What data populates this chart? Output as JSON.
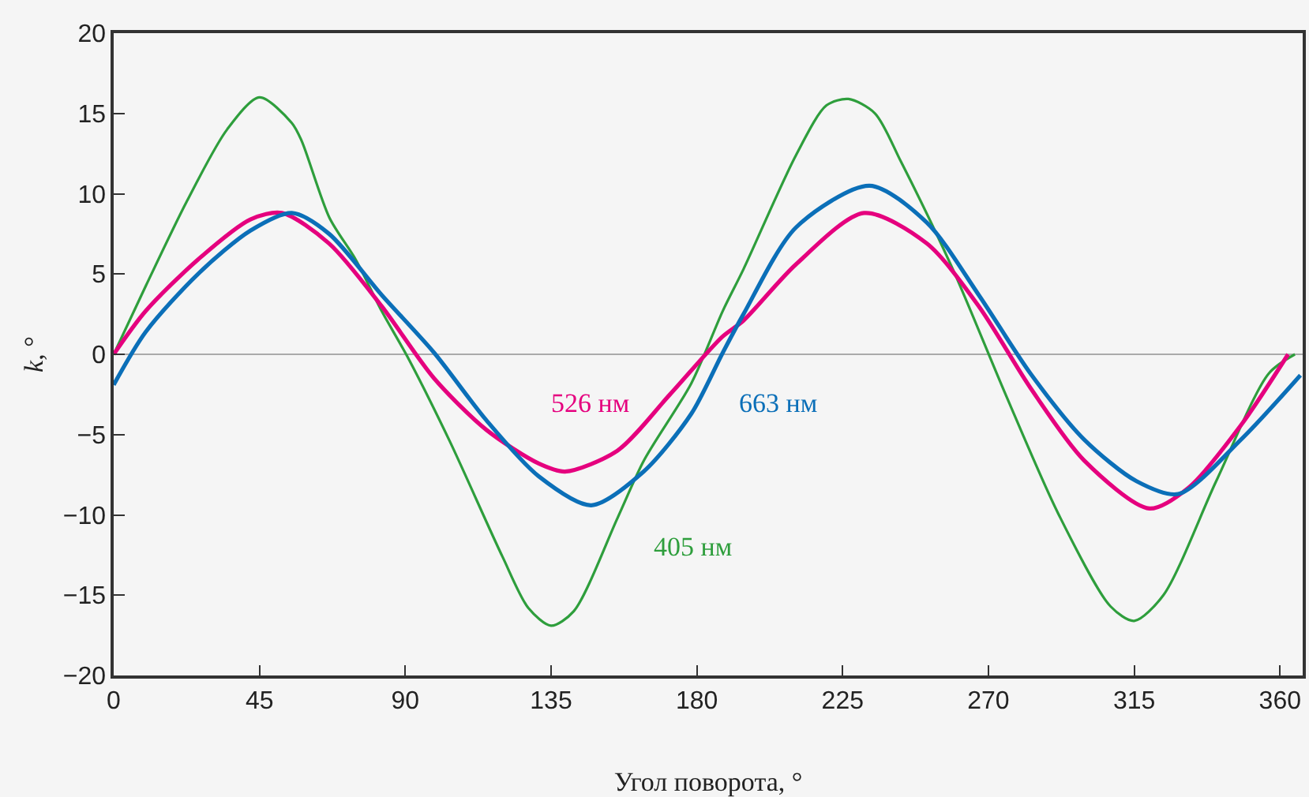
{
  "chart_data": {
    "type": "line",
    "xlabel": "Угол поворота, °",
    "ylabel": "k, °",
    "xlim": [
      0,
      367
    ],
    "xticks": [
      0,
      45,
      90,
      135,
      180,
      225,
      270,
      315,
      360
    ],
    "ylim": [
      -20,
      20
    ],
    "yticks": [
      {
        "value": -20,
        "label": "−20"
      },
      {
        "value": -15,
        "label": "−15"
      },
      {
        "value": -10,
        "label": "−10"
      },
      {
        "value": -5,
        "label": "−5"
      },
      0,
      5,
      10,
      15,
      20
    ],
    "grid": false,
    "legend": false,
    "marker": "none",
    "line_style": "solid",
    "ref_lines": [
      {
        "axis": "y",
        "value": 0,
        "color": "#aaaaaa"
      }
    ],
    "series": [
      {
        "name": "405 нм",
        "color": "#2e9e3c",
        "x": [
          0,
          10,
          22.5,
          35,
          45,
          55,
          58,
          66.6,
          74.7,
          82.7,
          90.8,
          103.7,
          120,
          128,
          135,
          142,
          155.5,
          163.7,
          178.3,
          188,
          194.4,
          210.6,
          220,
          226.8,
          235,
          243,
          259,
          275.3,
          291.5,
          307.7,
          315,
          324,
          340.3,
          356.5,
          364.6
        ],
        "values": [
          0,
          4.3,
          9.5,
          14,
          16,
          14.4,
          13.3,
          8.5,
          5.9,
          2.7,
          -0.2,
          -5.4,
          -12.6,
          -15.8,
          -16.9,
          -16,
          -10.2,
          -6.6,
          -1.8,
          2.7,
          5.3,
          12.4,
          15.5,
          15.9,
          15,
          12,
          5.3,
          -2.5,
          -9.9,
          -15.7,
          -16.6,
          -15,
          -7.9,
          -1.2,
          0
        ]
      },
      {
        "name": "526 нм",
        "color": "#e5007e",
        "x": [
          0,
          9.9,
          26,
          42.2,
          51.9,
          66.5,
          82.7,
          98.9,
          115,
          131.2,
          139.3,
          155.5,
          171.7,
          187.9,
          194.4,
          210.6,
          231.6,
          251,
          267,
          283,
          299.5,
          319.7,
          331.8,
          348,
          362.5
        ],
        "values": [
          0,
          2.7,
          5.9,
          8.4,
          8.8,
          6.9,
          3,
          -1.5,
          -4.7,
          -6.8,
          -7.3,
          -6,
          -2.5,
          1.1,
          2.1,
          5.6,
          8.8,
          6.9,
          3,
          -2.1,
          -6.6,
          -9.6,
          -8.3,
          -4.4,
          0
        ]
      },
      {
        "name": "663 нм",
        "color": "#0b6fb8",
        "x": [
          0,
          9.9,
          26,
          42.2,
          55,
          66.5,
          82.7,
          98.9,
          115,
          131.2,
          147.4,
          163.6,
          178.3,
          188,
          194.4,
          210.6,
          233.3,
          251,
          267,
          283,
          299.5,
          315.7,
          328.6,
          348,
          366.3
        ],
        "values": [
          -1.9,
          1.4,
          5,
          7.7,
          8.8,
          7.5,
          3.7,
          0.1,
          -4.1,
          -7.6,
          -9.4,
          -7.3,
          -3.7,
          0.1,
          2.5,
          7.9,
          10.5,
          8.2,
          3.7,
          -1.2,
          -5.3,
          -7.9,
          -8.7,
          -5.3,
          -1.3
        ]
      }
    ]
  }
}
